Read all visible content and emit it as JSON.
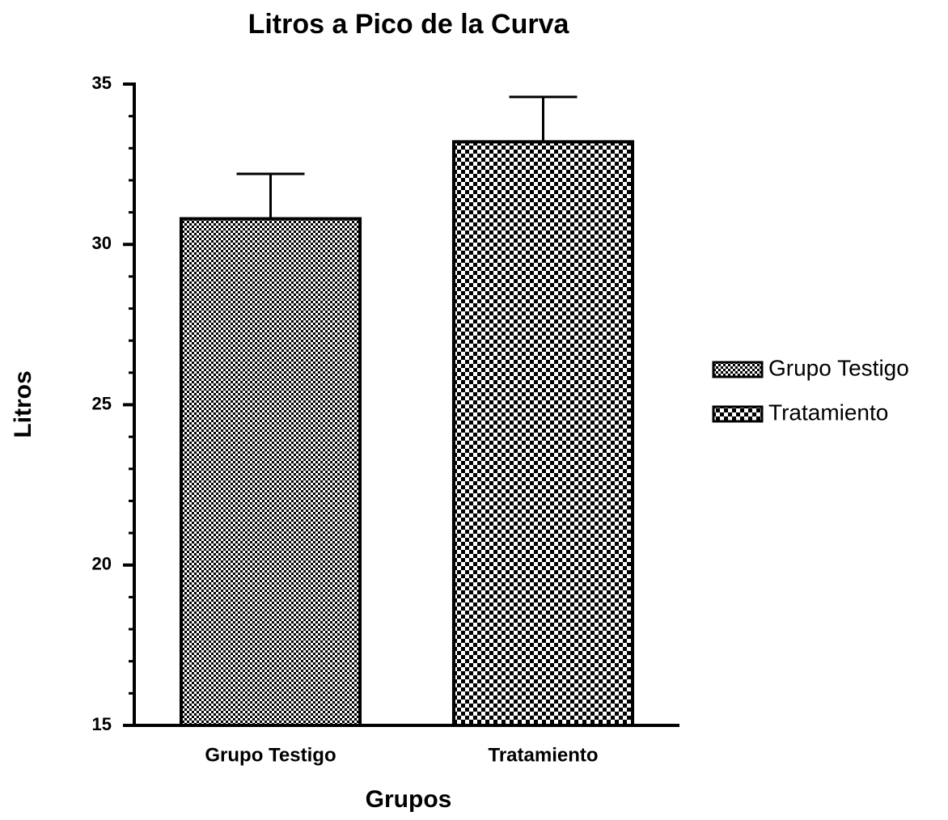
{
  "chart_data": {
    "type": "bar",
    "title": "Litros a Pico de la Curva",
    "x_label": "Grupos",
    "y_label": "Litros",
    "categories": [
      "Grupo Testigo",
      "Tratamiento"
    ],
    "values": [
      30.8,
      33.2
    ],
    "errors": [
      1.4,
      1.4
    ],
    "color": "#000000",
    "ylim": [
      15,
      35
    ],
    "yticks": [
      15,
      20,
      25,
      30,
      35
    ],
    "yminor_ticks": [
      16,
      17,
      18,
      19,
      21,
      22,
      23,
      24,
      26,
      27,
      28,
      29,
      31,
      32,
      33,
      34
    ],
    "grid": false,
    "legend": "right"
  }
}
